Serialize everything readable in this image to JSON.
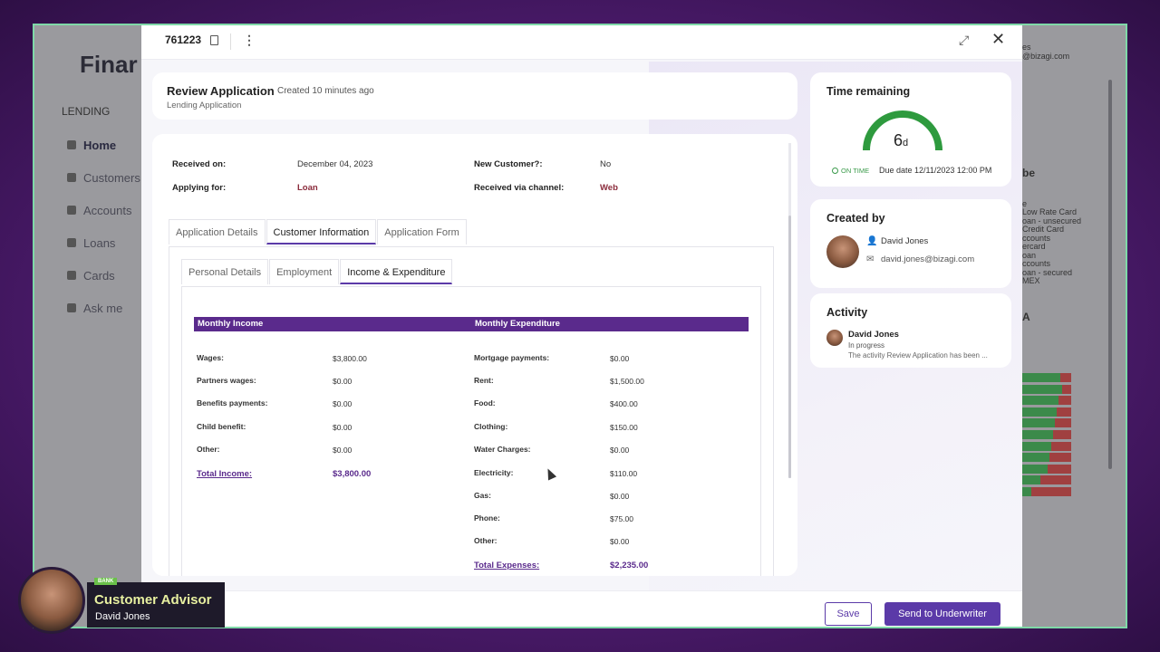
{
  "background_app": {
    "logo": "Finar",
    "section": "LENDING",
    "nav": [
      "Home",
      "Customers",
      "Accounts",
      "Loans",
      "Cards",
      "Ask me"
    ],
    "right_texts": [
      "es",
      "@bizagi.com"
    ],
    "right_heading": "be",
    "right_list": [
      "e",
      "Low Rate Card",
      "oan - unsecured",
      "Credit Card",
      "ccounts",
      "ercard",
      "oan",
      "ccounts",
      "oan - secured",
      "MEX"
    ],
    "right_heading2": "A"
  },
  "modal": {
    "case_id": "761223",
    "title": "Review Application",
    "created": "Created 10 minutes ago",
    "subtitle": "Lending Application"
  },
  "case_info": {
    "received_on_label": "Received on:",
    "received_on_value": "December 04, 2023",
    "new_customer_label": "New Customer?:",
    "new_customer_value": "No",
    "applying_for_label": "Applying for:",
    "applying_for_value": "Loan",
    "channel_label": "Received via channel:",
    "channel_value": "Web"
  },
  "outer_tabs": [
    "Application Details",
    "Customer Information",
    "Application Form"
  ],
  "inner_tabs": [
    "Personal Details",
    "Employment",
    "Income & Expenditure"
  ],
  "income": {
    "header": "Monthly Income",
    "rows": [
      {
        "label": "Wages:",
        "value": "$3,800.00"
      },
      {
        "label": "Partners wages:",
        "value": "$0.00"
      },
      {
        "label": "Benefits payments:",
        "value": "$0.00"
      },
      {
        "label": "Child benefit:",
        "value": "$0.00"
      },
      {
        "label": "Other:",
        "value": "$0.00"
      }
    ],
    "total_label": "Total Income:",
    "total_value": "$3,800.00"
  },
  "expenditure": {
    "header": "Monthly Expenditure",
    "rows": [
      {
        "label": "Mortgage payments:",
        "value": "$0.00"
      },
      {
        "label": "Rent:",
        "value": "$1,500.00"
      },
      {
        "label": "Food:",
        "value": "$400.00"
      },
      {
        "label": "Clothing:",
        "value": "$150.00"
      },
      {
        "label": "Water Charges:",
        "value": "$0.00"
      },
      {
        "label": "Electricity:",
        "value": "$110.00"
      },
      {
        "label": "Gas:",
        "value": "$0.00"
      },
      {
        "label": "Phone:",
        "value": "$75.00"
      },
      {
        "label": "Other:",
        "value": "$0.00"
      }
    ],
    "total_label": "Total Expenses:",
    "total_value": "$2,235.00"
  },
  "time_remaining": {
    "title": "Time remaining",
    "value": "6",
    "unit": "d",
    "status": "ON TIME",
    "due": "Due date 12/11/2023 12:00 PM",
    "status_color": "#3a9a4a"
  },
  "created_by": {
    "title": "Created by",
    "name": "David Jones",
    "email": "david.jones@bizagi.com"
  },
  "activity": {
    "title": "Activity",
    "name": "David Jones",
    "status": "In progress",
    "desc": "The activity Review Application has been ..."
  },
  "footer": {
    "save": "Save",
    "send": "Send to Underwriter"
  },
  "overlay": {
    "badge": "BANK",
    "title": "Customer Advisor",
    "name": "David Jones"
  },
  "colors": {
    "accent": "#5b3aa8",
    "header_bar": "#5a2a8c",
    "frame_border": "#7fd9a8"
  }
}
